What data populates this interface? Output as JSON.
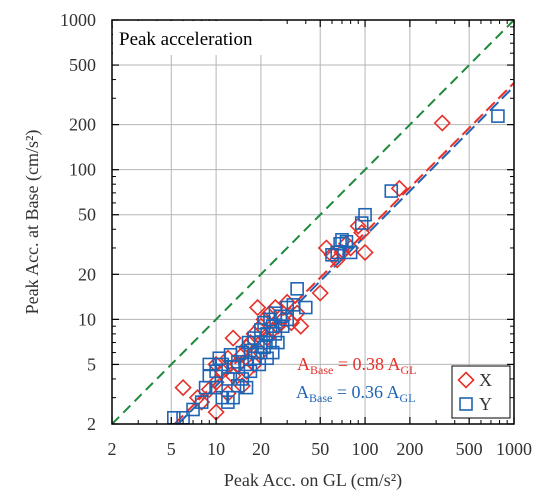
{
  "chart_data": {
    "type": "scatter",
    "title": "Peak acceleration",
    "xlabel": "Peak Acc. on GL (cm/s²)",
    "ylabel": "Peak Acc. at Base (cm/s²)",
    "xscale": "log",
    "yscale": "log",
    "xlim": [
      2,
      1000
    ],
    "ylim": [
      2,
      1000
    ],
    "grid": true,
    "legend_position": "bottom-right",
    "x_ticks": [
      2,
      5,
      10,
      20,
      50,
      100,
      200,
      500,
      1000
    ],
    "x_tick_labels": [
      "2",
      "5",
      "10",
      "20",
      "50",
      "100",
      "200",
      "500",
      "1000"
    ],
    "y_ticks": [
      2,
      5,
      10,
      20,
      50,
      100,
      200,
      500,
      1000
    ],
    "y_tick_labels": [
      "2",
      "5",
      "10",
      "20",
      "50",
      "100",
      "200",
      "500",
      "1000"
    ],
    "series": [
      {
        "name": "X",
        "marker": "diamond",
        "color": "#e8302a",
        "points": [
          [
            6,
            3.5
          ],
          [
            7.5,
            3
          ],
          [
            8,
            2.8
          ],
          [
            9,
            3.4
          ],
          [
            10,
            2.4
          ],
          [
            10,
            3.8
          ],
          [
            10,
            5
          ],
          [
            11,
            4.5
          ],
          [
            12,
            3.2
          ],
          [
            12,
            5.5
          ],
          [
            13,
            7.5
          ],
          [
            13,
            4.2
          ],
          [
            14,
            5
          ],
          [
            15,
            3.6
          ],
          [
            15,
            5.8
          ],
          [
            16,
            6.5
          ],
          [
            16,
            4.5
          ],
          [
            17,
            7
          ],
          [
            18,
            5
          ],
          [
            18,
            8
          ],
          [
            19,
            12
          ],
          [
            20,
            6
          ],
          [
            20,
            9
          ],
          [
            21,
            10
          ],
          [
            22,
            7.5
          ],
          [
            23,
            11
          ],
          [
            24,
            8.5
          ],
          [
            25,
            12
          ],
          [
            26,
            9
          ],
          [
            28,
            10
          ],
          [
            30,
            13
          ],
          [
            32,
            9.5
          ],
          [
            35,
            11
          ],
          [
            37,
            9
          ],
          [
            50,
            15
          ],
          [
            55,
            30
          ],
          [
            60,
            27
          ],
          [
            65,
            25
          ],
          [
            70,
            28
          ],
          [
            75,
            32
          ],
          [
            80,
            30
          ],
          [
            90,
            42
          ],
          [
            95,
            38
          ],
          [
            100,
            28
          ],
          [
            170,
            75
          ],
          [
            330,
            205
          ]
        ]
      },
      {
        "name": "Y",
        "marker": "square",
        "color": "#1f64b4",
        "points": [
          [
            5.2,
            2.2
          ],
          [
            6,
            2.2
          ],
          [
            7,
            2.5
          ],
          [
            8,
            2.8
          ],
          [
            8.5,
            3.5
          ],
          [
            9,
            4.2
          ],
          [
            9,
            5
          ],
          [
            10,
            3.5
          ],
          [
            10,
            4.5
          ],
          [
            10.5,
            5.5
          ],
          [
            11,
            3
          ],
          [
            11,
            5
          ],
          [
            12,
            2.8
          ],
          [
            12,
            4
          ],
          [
            12.5,
            5.8
          ],
          [
            13,
            3
          ],
          [
            13,
            4.8
          ],
          [
            14,
            3.6
          ],
          [
            14,
            5.2
          ],
          [
            15,
            4
          ],
          [
            15,
            6
          ],
          [
            16,
            3.5
          ],
          [
            16,
            5
          ],
          [
            16.5,
            7
          ],
          [
            17,
            4.5
          ],
          [
            17,
            6.2
          ],
          [
            18,
            5.5
          ],
          [
            18,
            7.5
          ],
          [
            19,
            6
          ],
          [
            19.5,
            5
          ],
          [
            20,
            7
          ],
          [
            20,
            8.5
          ],
          [
            21,
            6.5
          ],
          [
            21,
            9.5
          ],
          [
            22,
            5.5
          ],
          [
            22,
            8
          ],
          [
            23,
            7
          ],
          [
            23,
            10
          ],
          [
            24,
            6
          ],
          [
            24,
            9
          ],
          [
            25,
            8
          ],
          [
            25,
            11
          ],
          [
            26,
            7
          ],
          [
            27,
            10.5
          ],
          [
            28,
            9
          ],
          [
            30,
            10
          ],
          [
            30,
            12
          ],
          [
            33,
            12.5
          ],
          [
            35,
            16
          ],
          [
            40,
            12
          ],
          [
            60,
            27
          ],
          [
            65,
            28
          ],
          [
            68,
            32
          ],
          [
            70,
            34
          ],
          [
            75,
            33
          ],
          [
            80,
            28
          ],
          [
            95,
            44
          ],
          [
            100,
            50
          ],
          [
            150,
            72
          ],
          [
            780,
            228
          ]
        ]
      }
    ],
    "reference_line": {
      "description": "1:1",
      "slope": 1,
      "color": "#1e8a3c",
      "style": "dashed"
    },
    "fit_lines": [
      {
        "series": "X",
        "slope": 0.38,
        "color": "#e8302a",
        "style": "dashed",
        "label_main": "A",
        "label_sub1": "Base",
        "label_mid": " = 0.38 A",
        "label_sub2": "GL"
      },
      {
        "series": "Y",
        "slope": 0.36,
        "color": "#1f64b4",
        "style": "dashed",
        "label_main": "A",
        "label_sub1": "Base",
        "label_mid": " = 0.36 A",
        "label_sub2": "GL"
      }
    ],
    "legend": [
      {
        "label": "X",
        "marker": "diamond",
        "color": "#e8302a"
      },
      {
        "label": "Y",
        "marker": "square",
        "color": "#1f64b4"
      }
    ]
  }
}
